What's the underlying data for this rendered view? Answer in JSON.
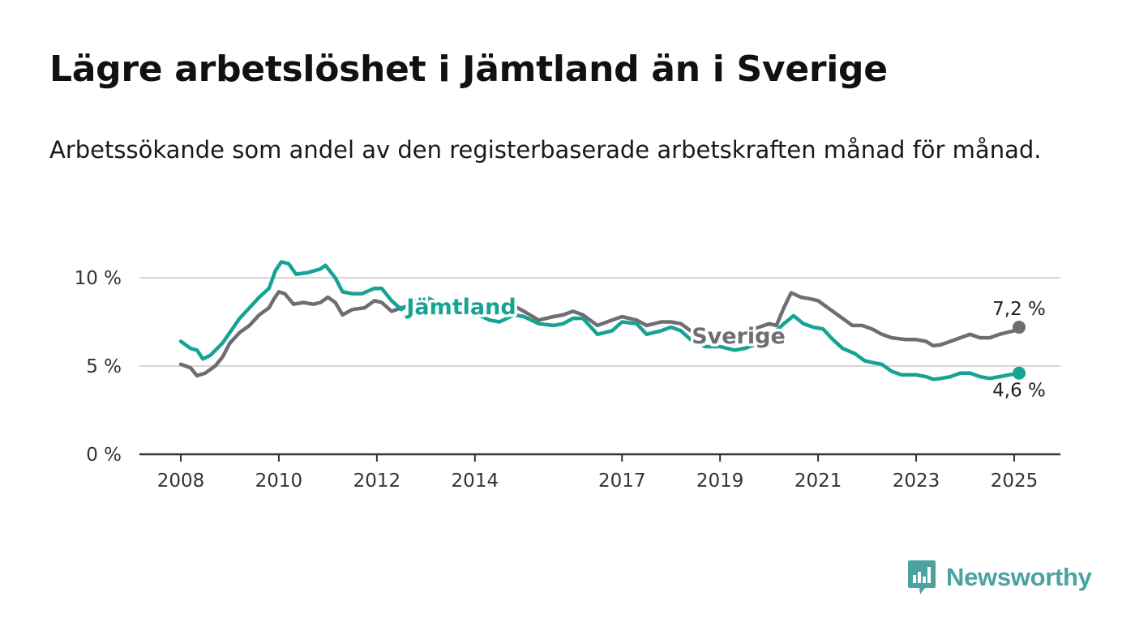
{
  "title": "Lägre arbetslöshet i Jämtland än i Sverige",
  "subtitle": "Arbetssökande som andel av den registerbaserade arbetskraften månad för månad.",
  "brand": {
    "name": "Newsworthy",
    "color": "#4aa3a1",
    "icon": "newsworthy-logo-icon"
  },
  "chart_data": {
    "type": "line",
    "xlim": [
      2008,
      2025.2
    ],
    "ylim": [
      0,
      12
    ],
    "y_ticks": [
      {
        "value": 0,
        "label": "0 %"
      },
      {
        "value": 5,
        "label": "5 %"
      },
      {
        "value": 10,
        "label": "10 %"
      }
    ],
    "x_ticks": [
      {
        "value": 2008,
        "label": "2008"
      },
      {
        "value": 2010,
        "label": "2010"
      },
      {
        "value": 2012,
        "label": "2012"
      },
      {
        "value": 2014,
        "label": "2014"
      },
      {
        "value": 2017,
        "label": "2017"
      },
      {
        "value": 2019,
        "label": "2019"
      },
      {
        "value": 2021,
        "label": "2021"
      },
      {
        "value": 2023,
        "label": "2023"
      },
      {
        "value": 2025,
        "label": "2025"
      }
    ],
    "grid": "horizontal",
    "series": [
      {
        "name": "Sverige",
        "color": "#6f6d72",
        "end_label": "7,2 %",
        "points": [
          [
            2008.0,
            5.1
          ],
          [
            2008.2,
            4.9
          ],
          [
            2008.33,
            4.45
          ],
          [
            2008.5,
            4.6
          ],
          [
            2008.7,
            5.0
          ],
          [
            2008.85,
            5.5
          ],
          [
            2009.0,
            6.3
          ],
          [
            2009.2,
            6.9
          ],
          [
            2009.4,
            7.3
          ],
          [
            2009.6,
            7.9
          ],
          [
            2009.8,
            8.3
          ],
          [
            2009.9,
            8.8
          ],
          [
            2010.0,
            9.2
          ],
          [
            2010.12,
            9.1
          ],
          [
            2010.3,
            8.5
          ],
          [
            2010.5,
            8.6
          ],
          [
            2010.7,
            8.5
          ],
          [
            2010.85,
            8.6
          ],
          [
            2011.0,
            8.9
          ],
          [
            2011.15,
            8.6
          ],
          [
            2011.3,
            7.9
          ],
          [
            2011.5,
            8.2
          ],
          [
            2011.75,
            8.3
          ],
          [
            2011.95,
            8.7
          ],
          [
            2012.1,
            8.6
          ],
          [
            2012.3,
            8.1
          ],
          [
            2012.5,
            8.3
          ],
          [
            2012.8,
            8.5
          ],
          [
            2013.0,
            8.7
          ],
          [
            2013.3,
            8.2
          ],
          [
            2013.6,
            8.5
          ],
          [
            2014.0,
            8.0
          ],
          [
            2014.4,
            8.1
          ],
          [
            2014.8,
            8.4
          ],
          [
            2015.0,
            8.1
          ],
          [
            2015.3,
            7.6
          ],
          [
            2015.6,
            7.8
          ],
          [
            2015.8,
            7.9
          ],
          [
            2016.0,
            8.1
          ],
          [
            2016.2,
            7.9
          ],
          [
            2016.5,
            7.3
          ],
          [
            2016.8,
            7.6
          ],
          [
            2017.0,
            7.8
          ],
          [
            2017.3,
            7.6
          ],
          [
            2017.5,
            7.3
          ],
          [
            2017.8,
            7.5
          ],
          [
            2018.0,
            7.5
          ],
          [
            2018.2,
            7.4
          ],
          [
            2018.4,
            7.0
          ],
          [
            2018.6,
            6.7
          ],
          [
            2019.0,
            6.8
          ],
          [
            2019.3,
            6.9
          ],
          [
            2019.6,
            7.0
          ],
          [
            2019.8,
            7.2
          ],
          [
            2020.0,
            7.4
          ],
          [
            2020.15,
            7.3
          ],
          [
            2020.3,
            8.3
          ],
          [
            2020.45,
            9.15
          ],
          [
            2020.65,
            8.9
          ],
          [
            2020.85,
            8.8
          ],
          [
            2021.0,
            8.7
          ],
          [
            2021.2,
            8.3
          ],
          [
            2021.4,
            7.9
          ],
          [
            2021.7,
            7.3
          ],
          [
            2021.9,
            7.3
          ],
          [
            2022.1,
            7.1
          ],
          [
            2022.3,
            6.8
          ],
          [
            2022.5,
            6.6
          ],
          [
            2022.8,
            6.5
          ],
          [
            2023.0,
            6.5
          ],
          [
            2023.2,
            6.4
          ],
          [
            2023.35,
            6.15
          ],
          [
            2023.5,
            6.2
          ],
          [
            2023.7,
            6.4
          ],
          [
            2023.9,
            6.6
          ],
          [
            2024.1,
            6.8
          ],
          [
            2024.3,
            6.6
          ],
          [
            2024.5,
            6.6
          ],
          [
            2024.7,
            6.8
          ],
          [
            2024.85,
            6.9
          ],
          [
            2025.0,
            7.0
          ],
          [
            2025.1,
            7.2
          ]
        ]
      },
      {
        "name": "Jämtland",
        "color": "#16a394",
        "end_label": "4,6 %",
        "points": [
          [
            2008.0,
            6.4
          ],
          [
            2008.2,
            6.0
          ],
          [
            2008.33,
            5.9
          ],
          [
            2008.45,
            5.4
          ],
          [
            2008.6,
            5.6
          ],
          [
            2008.85,
            6.3
          ],
          [
            2009.0,
            6.9
          ],
          [
            2009.2,
            7.7
          ],
          [
            2009.4,
            8.3
          ],
          [
            2009.6,
            8.9
          ],
          [
            2009.8,
            9.4
          ],
          [
            2009.93,
            10.4
          ],
          [
            2010.05,
            10.9
          ],
          [
            2010.2,
            10.8
          ],
          [
            2010.35,
            10.2
          ],
          [
            2010.6,
            10.3
          ],
          [
            2010.85,
            10.5
          ],
          [
            2010.95,
            10.7
          ],
          [
            2011.15,
            10.0
          ],
          [
            2011.3,
            9.2
          ],
          [
            2011.5,
            9.1
          ],
          [
            2011.7,
            9.1
          ],
          [
            2011.95,
            9.4
          ],
          [
            2012.1,
            9.4
          ],
          [
            2012.3,
            8.7
          ],
          [
            2012.5,
            8.2
          ],
          [
            2012.7,
            8.6
          ],
          [
            2013.0,
            8.9
          ],
          [
            2013.3,
            8.5
          ],
          [
            2013.6,
            8.3
          ],
          [
            2014.0,
            8.0
          ],
          [
            2014.3,
            7.6
          ],
          [
            2014.5,
            7.5
          ],
          [
            2014.8,
            7.9
          ],
          [
            2015.0,
            7.8
          ],
          [
            2015.3,
            7.4
          ],
          [
            2015.6,
            7.3
          ],
          [
            2015.8,
            7.4
          ],
          [
            2016.0,
            7.7
          ],
          [
            2016.2,
            7.7
          ],
          [
            2016.5,
            6.8
          ],
          [
            2016.8,
            7.0
          ],
          [
            2017.0,
            7.5
          ],
          [
            2017.3,
            7.4
          ],
          [
            2017.5,
            6.8
          ],
          [
            2017.8,
            7.0
          ],
          [
            2018.0,
            7.2
          ],
          [
            2018.2,
            7.0
          ],
          [
            2018.4,
            6.5
          ],
          [
            2018.7,
            6.1
          ],
          [
            2019.0,
            6.1
          ],
          [
            2019.3,
            5.9
          ],
          [
            2019.5,
            6.0
          ],
          [
            2019.8,
            6.3
          ],
          [
            2020.0,
            6.5
          ],
          [
            2020.15,
            7.0
          ],
          [
            2020.3,
            7.4
          ],
          [
            2020.5,
            7.85
          ],
          [
            2020.7,
            7.4
          ],
          [
            2020.9,
            7.2
          ],
          [
            2021.1,
            7.1
          ],
          [
            2021.3,
            6.5
          ],
          [
            2021.5,
            6.0
          ],
          [
            2021.75,
            5.7
          ],
          [
            2021.95,
            5.3
          ],
          [
            2022.1,
            5.2
          ],
          [
            2022.3,
            5.1
          ],
          [
            2022.5,
            4.7
          ],
          [
            2022.7,
            4.5
          ],
          [
            2023.0,
            4.5
          ],
          [
            2023.2,
            4.4
          ],
          [
            2023.35,
            4.25
          ],
          [
            2023.5,
            4.3
          ],
          [
            2023.7,
            4.4
          ],
          [
            2023.9,
            4.6
          ],
          [
            2024.1,
            4.6
          ],
          [
            2024.3,
            4.4
          ],
          [
            2024.5,
            4.3
          ],
          [
            2024.7,
            4.4
          ],
          [
            2024.9,
            4.5
          ],
          [
            2025.1,
            4.6
          ]
        ]
      }
    ]
  }
}
